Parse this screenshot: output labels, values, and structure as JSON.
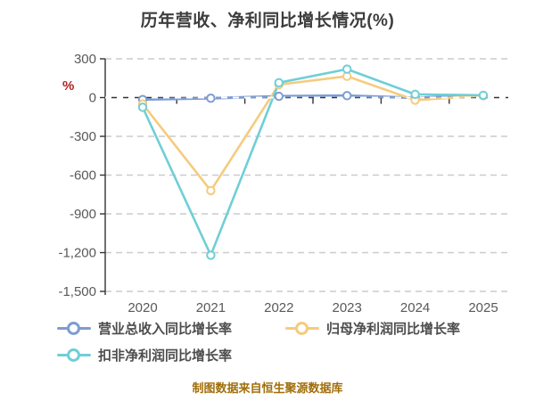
{
  "title": "历年营收、净利同比增长情况(%)",
  "caption": "制图数据来自恒生聚源数据库",
  "colors": {
    "background": "#ffffff",
    "title_text": "#3d3d3d",
    "tick_text": "#595959",
    "axis_line": "#333333",
    "grid_line": "#cccccc",
    "zero_grid_overlay": "#ffffff",
    "y_unit_label": "#b22222",
    "caption_text": "#a06e0a",
    "legend_text": "#4d4d4d"
  },
  "chart_data": {
    "type": "line",
    "title": "历年营收、净利同比增长情况(%)",
    "xlabel": "",
    "ylabel": "%",
    "categories": [
      "2020",
      "2021",
      "2022",
      "2023",
      "2024",
      "2025"
    ],
    "series": [
      {
        "name": "营业总收入同比增长率",
        "color": "#7e9cd0",
        "values": [
          -15,
          -5,
          10,
          15,
          -2,
          15
        ]
      },
      {
        "name": "归母净利润同比增长率",
        "color": "#f5cb7e",
        "values": [
          -50,
          -720,
          100,
          165,
          -20,
          15
        ]
      },
      {
        "name": "扣非净利润同比增长率",
        "color": "#6fcfd6",
        "values": [
          -75,
          -1220,
          115,
          220,
          25,
          18
        ]
      }
    ],
    "ylim": [
      -1500,
      300
    ],
    "ytick_step": 300,
    "ytick_labels": [
      "300",
      "0",
      "-300",
      "-600",
      "-900",
      "-1,200",
      "-1,500"
    ],
    "grid": "horizontal-dashed",
    "marker": "open-circle",
    "legend_position": "bottom-left"
  }
}
